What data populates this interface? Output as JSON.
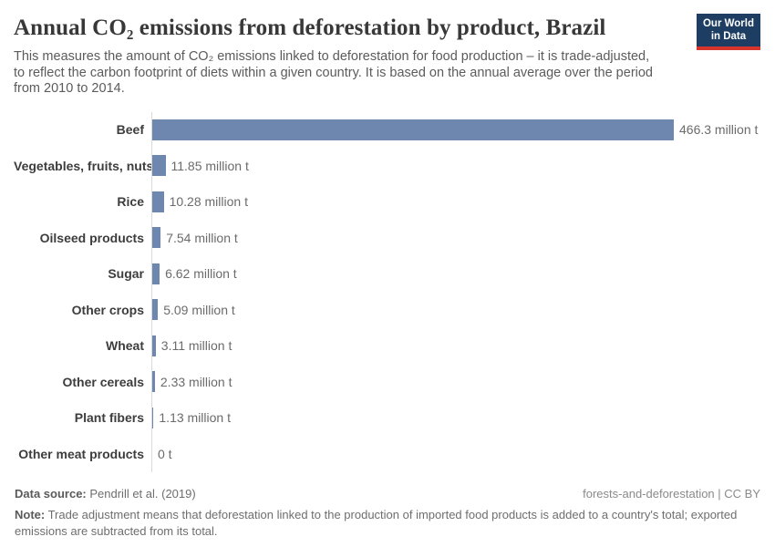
{
  "header": {
    "title": "Annual CO₂ emissions from deforestation by product, Brazil",
    "subtitle": "This measures the amount of CO₂ emissions linked to deforestation for food production – it is trade-adjusted,\nto reflect the carbon footprint of diets within a given country. It is based on the annual average over the period\nfrom 2010 to 2014.",
    "logo": {
      "line1": "Our World",
      "line2": "in Data",
      "bg_color": "#1d3d63",
      "accent_color": "#d7342c"
    }
  },
  "chart_data": {
    "type": "bar",
    "orientation": "horizontal",
    "title": "Annual CO₂ emissions from deforestation by product, Brazil",
    "unit": "million t",
    "categories": [
      "Beef",
      "Vegetables, fruits, nuts",
      "Rice",
      "Oilseed products",
      "Sugar",
      "Other crops",
      "Wheat",
      "Other cereals",
      "Plant fibers",
      "Other meat products"
    ],
    "values": [
      466.3,
      11.85,
      10.28,
      7.54,
      6.62,
      5.09,
      3.11,
      2.33,
      1.13,
      0
    ],
    "value_labels": [
      "466.3 million t",
      "11.85 million t",
      "10.28 million t",
      "7.54 million t",
      "6.62 million t",
      "5.09 million t",
      "3.11 million t",
      "2.33 million t",
      "1.13 million t",
      "0 t"
    ],
    "xlim": [
      0,
      466.3
    ],
    "grid": false,
    "legend": false,
    "bar_color": "#6e87ae",
    "axis_color": "#d9d9d9"
  },
  "footer": {
    "data_source_label": "Data source:",
    "data_source": " Pendrill et al. (2019)",
    "attribution": "forests-and-deforestation | CC BY",
    "note_label": "Note:",
    "note": " Trade adjustment means that deforestation linked to the production of imported food products is added to a country's total; exported emissions are subtracted from its total."
  }
}
